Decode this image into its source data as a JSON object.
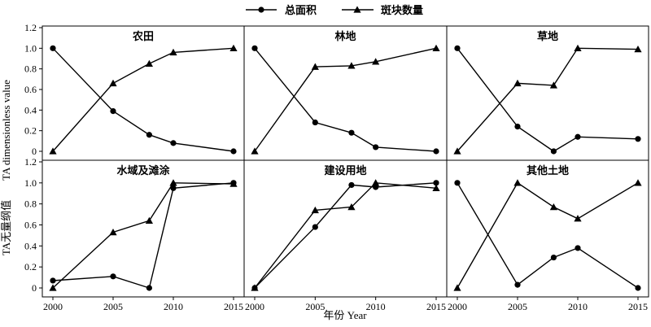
{
  "chart_data": {
    "type": "line",
    "xlabel": "年份 Year",
    "ylabel_cn": "TA无量纲值",
    "ylabel_en": "TA dimensionless value",
    "xlim": [
      2000,
      2015
    ],
    "ylim": [
      0,
      1.2
    ],
    "xticks": [
      "2000",
      "2005",
      "2010",
      "2015"
    ],
    "yticks": [
      "0",
      "0.2",
      "0.4",
      "0.6",
      "0.8",
      "1.0",
      "1.2"
    ],
    "legend": {
      "placement": "top-center",
      "entries": [
        {
          "name": "总面积",
          "marker": "circle"
        },
        {
          "name": "斑块数量",
          "marker": "triangle"
        }
      ]
    },
    "x": [
      2000,
      2005,
      2008,
      2010,
      2015
    ],
    "panels": [
      {
        "title": "农田",
        "series": [
          {
            "name": "总面积",
            "values": [
              1.0,
              0.39,
              0.16,
              0.08,
              0.0
            ]
          },
          {
            "name": "斑块数量",
            "values": [
              0.0,
              0.66,
              0.85,
              0.96,
              1.0
            ]
          }
        ]
      },
      {
        "title": "林地",
        "series": [
          {
            "name": "总面积",
            "values": [
              1.0,
              0.28,
              0.18,
              0.04,
              0.0
            ]
          },
          {
            "name": "斑块数量",
            "values": [
              0.0,
              0.82,
              0.83,
              0.87,
              1.0
            ]
          }
        ]
      },
      {
        "title": "草地",
        "series": [
          {
            "name": "总面积",
            "values": [
              1.0,
              0.24,
              0.0,
              0.14,
              0.12
            ]
          },
          {
            "name": "斑块数量",
            "values": [
              0.0,
              0.66,
              0.64,
              1.0,
              0.99
            ]
          }
        ]
      },
      {
        "title": "水域及滩涂",
        "series": [
          {
            "name": "总面积",
            "values": [
              0.07,
              0.11,
              0.0,
              0.95,
              1.0
            ]
          },
          {
            "name": "斑块数量",
            "values": [
              0.0,
              0.53,
              0.64,
              1.0,
              0.99
            ]
          }
        ]
      },
      {
        "title": "建设用地",
        "series": [
          {
            "name": "总面积",
            "values": [
              0.0,
              0.58,
              0.98,
              0.96,
              1.0
            ]
          },
          {
            "name": "斑块数量",
            "values": [
              0.0,
              0.74,
              0.77,
              1.0,
              0.95
            ]
          }
        ]
      },
      {
        "title": "其他土地",
        "series": [
          {
            "name": "总面积",
            "values": [
              1.0,
              0.03,
              0.29,
              0.38,
              0.0
            ]
          },
          {
            "name": "斑块数量",
            "values": [
              0.0,
              1.0,
              0.77,
              0.66,
              1.0
            ]
          }
        ]
      }
    ]
  }
}
